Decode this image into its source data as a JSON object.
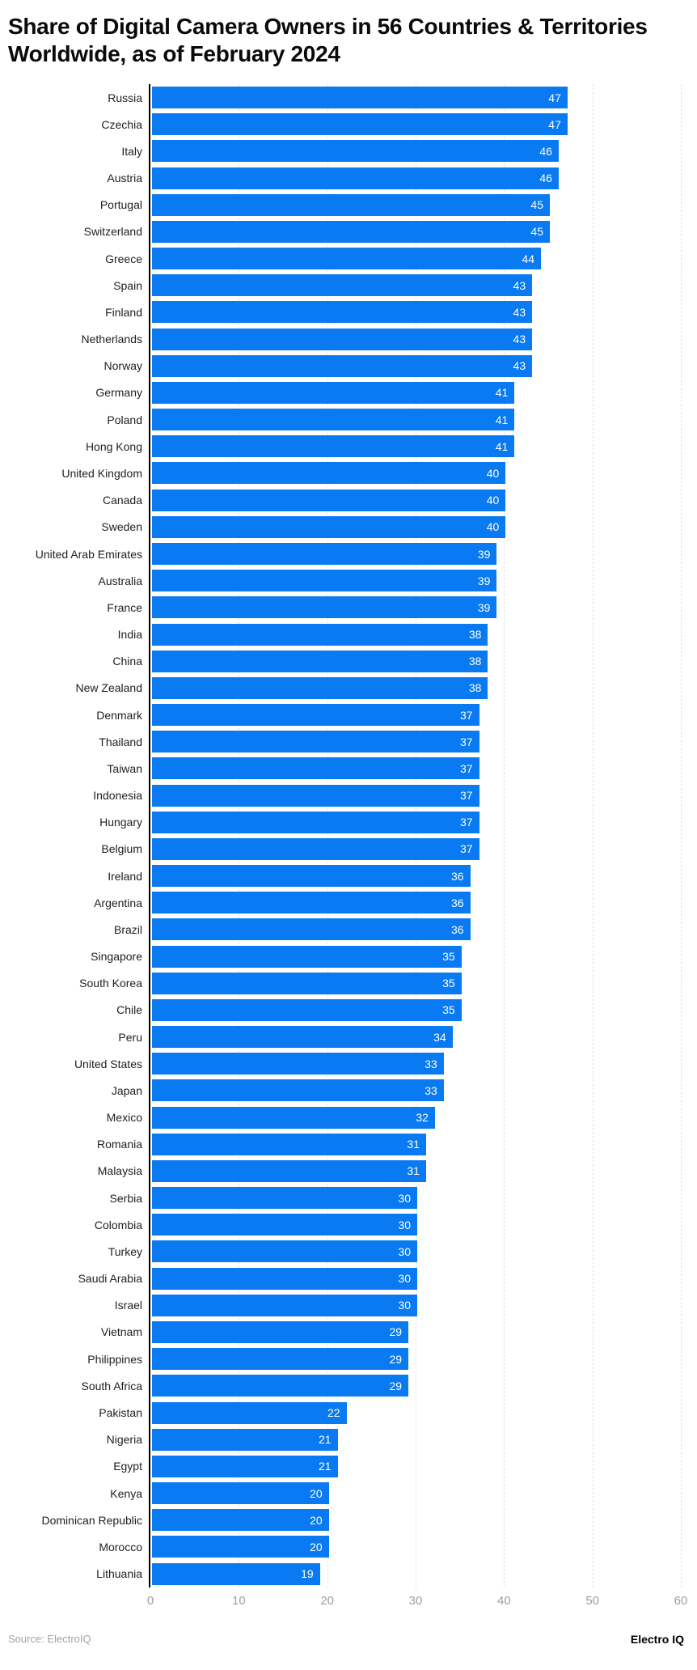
{
  "title": "Share of Digital Camera Owners in 56 Countries & Territories Worldwide, as of February 2024",
  "footer": {
    "source": "Source: ElectroIQ",
    "brand": "Electro IQ"
  },
  "colors": {
    "bar": "#0a7af2",
    "axis_line": "#000000",
    "gridline": "#e2e2e2",
    "tick_label": "#9e9e9e",
    "category_label": "#1f1f1f",
    "value_label": "#ffffff",
    "title": "#0a0a0a",
    "source_text": "#a3a3a3"
  },
  "chart_data": {
    "type": "bar",
    "orientation": "horizontal",
    "title": "Share of Digital Camera Owners in 56 Countries & Territories Worldwide, as of February 2024",
    "xlabel": "",
    "ylabel": "",
    "xlim": [
      0,
      60
    ],
    "x_ticks": [
      0,
      10,
      20,
      30,
      40,
      50,
      60
    ],
    "grid": "vertical-dashed",
    "legend": "none",
    "value_labels": "inside-end",
    "categories": [
      "Russia",
      "Czechia",
      "Italy",
      "Austria",
      "Portugal",
      "Switzerland",
      "Greece",
      "Spain",
      "Finland",
      "Netherlands",
      "Norway",
      "Germany",
      "Poland",
      "Hong Kong",
      "United Kingdom",
      "Canada",
      "Sweden",
      "United Arab Emirates",
      "Australia",
      "France",
      "India",
      "China",
      "New Zealand",
      "Denmark",
      "Thailand",
      "Taiwan",
      "Indonesia",
      "Hungary",
      "Belgium",
      "Ireland",
      "Argentina",
      "Brazil",
      "Singapore",
      "South Korea",
      "Chile",
      "Peru",
      "United States",
      "Japan",
      "Mexico",
      "Romania",
      "Malaysia",
      "Serbia",
      "Colombia",
      "Turkey",
      "Saudi Arabia",
      "Israel",
      "Vietnam",
      "Philippines",
      "South Africa",
      "Pakistan",
      "Nigeria",
      "Egypt",
      "Kenya",
      "Dominican Republic",
      "Morocco",
      "Lithuania"
    ],
    "values": [
      47,
      47,
      46,
      46,
      45,
      45,
      44,
      43,
      43,
      43,
      43,
      41,
      41,
      41,
      40,
      40,
      40,
      39,
      39,
      39,
      38,
      38,
      38,
      37,
      37,
      37,
      37,
      37,
      37,
      36,
      36,
      36,
      35,
      35,
      35,
      34,
      33,
      33,
      32,
      31,
      31,
      30,
      30,
      30,
      30,
      30,
      29,
      29,
      29,
      22,
      21,
      21,
      20,
      20,
      20,
      19
    ]
  }
}
